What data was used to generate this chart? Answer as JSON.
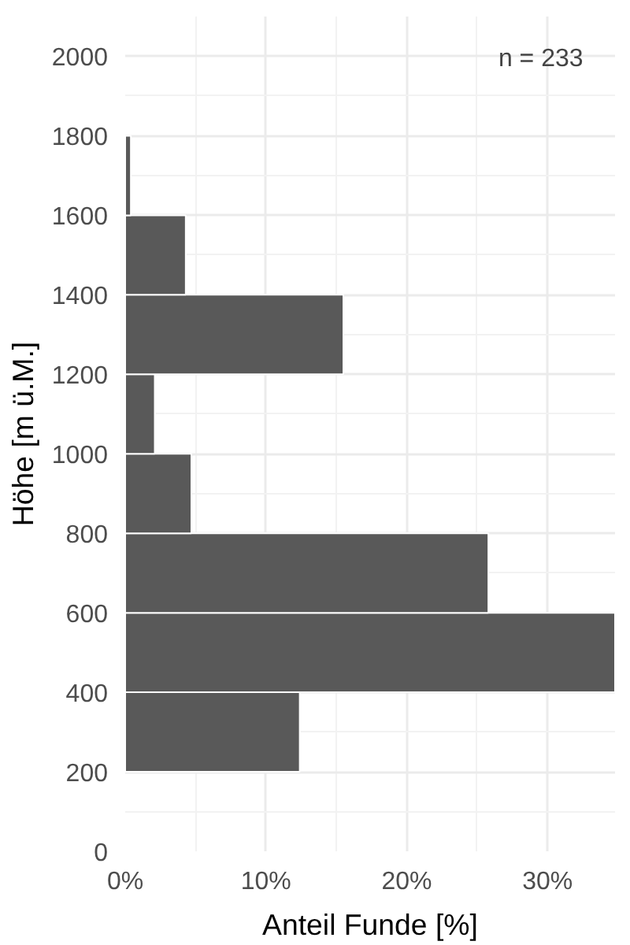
{
  "chart_data": {
    "type": "histogram",
    "orientation": "horizontal",
    "bins": [
      200,
      400,
      600,
      800,
      1000,
      1200,
      1400,
      1600,
      1800
    ],
    "values": [
      12.4,
      34.8,
      25.8,
      4.7,
      2.1,
      15.5,
      4.3,
      0.4
    ],
    "color": "#595959",
    "xlabel": "Anteil Funde [%]",
    "ylabel": "Höhe [m ü.M.]",
    "annotations": [
      "n = 233"
    ],
    "xlim": [
      0,
      34.8
    ],
    "xticks": [
      {
        "value": 0,
        "label": "0%"
      },
      {
        "value": 10,
        "label": "10%"
      },
      {
        "value": 20,
        "label": "20%"
      },
      {
        "value": 30,
        "label": "30%"
      }
    ],
    "ylim": [
      0,
      2100
    ],
    "yticks": [
      0,
      200,
      400,
      600,
      800,
      1000,
      1200,
      1400,
      1600,
      1800,
      2000
    ],
    "grid": true
  }
}
